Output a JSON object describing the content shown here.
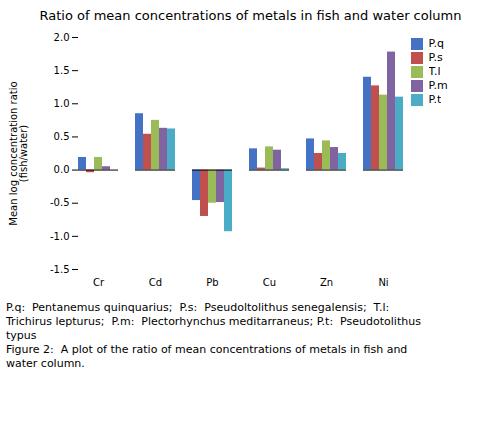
{
  "chart_data": {
    "type": "bar",
    "title": "Ratio of mean concentrations of metals in fish and water column",
    "ylabel": "Mean log concentration ratio\n(fish/water)",
    "categories": [
      "Cr",
      "Cd",
      "Pb",
      "Cu",
      "Zn",
      "Ni"
    ],
    "series": [
      {
        "name": "P.q",
        "color": "#4472C4",
        "values": [
          0.19,
          0.85,
          -0.46,
          0.32,
          0.47,
          1.4
        ]
      },
      {
        "name": "P.s",
        "color": "#C0504D",
        "values": [
          -0.04,
          0.54,
          -0.7,
          0.03,
          0.25,
          1.27
        ]
      },
      {
        "name": "T.l",
        "color": "#9BBB59",
        "values": [
          0.19,
          0.75,
          -0.5,
          0.35,
          0.44,
          1.13
        ]
      },
      {
        "name": "P.m",
        "color": "#8064A2",
        "values": [
          0.05,
          0.63,
          -0.49,
          0.3,
          0.34,
          1.78
        ]
      },
      {
        "name": "P.t",
        "color": "#4BACC6",
        "values": [
          0.0,
          0.62,
          -0.93,
          0.02,
          0.25,
          1.1
        ]
      }
    ],
    "ylim": [
      -1.5,
      2.0
    ],
    "yticks": [
      -1.5,
      {
        "value": -1.0,
        "label": "-1.0"
      },
      -0.5,
      {
        "value": 0.0,
        "label": "0.0"
      },
      0.5,
      {
        "value": 1.0,
        "label": "1.0"
      },
      1.5,
      {
        "value": 2.0,
        "label": "2.0"
      }
    ],
    "grid": false,
    "legend": "right",
    "annotations": [
      "P.q:  Pentanemus quinquarius;  P.s:  Pseudoltolithus senegalensis;  T.l:",
      "Trichirus lepturus;  P.m:  Plectorhynchus meditarraneus; P.t:  Pseudotolithus",
      "typus",
      "Figure 2:  A plot of the ratio of mean concentrations of metals in fish and",
      "water column."
    ]
  }
}
